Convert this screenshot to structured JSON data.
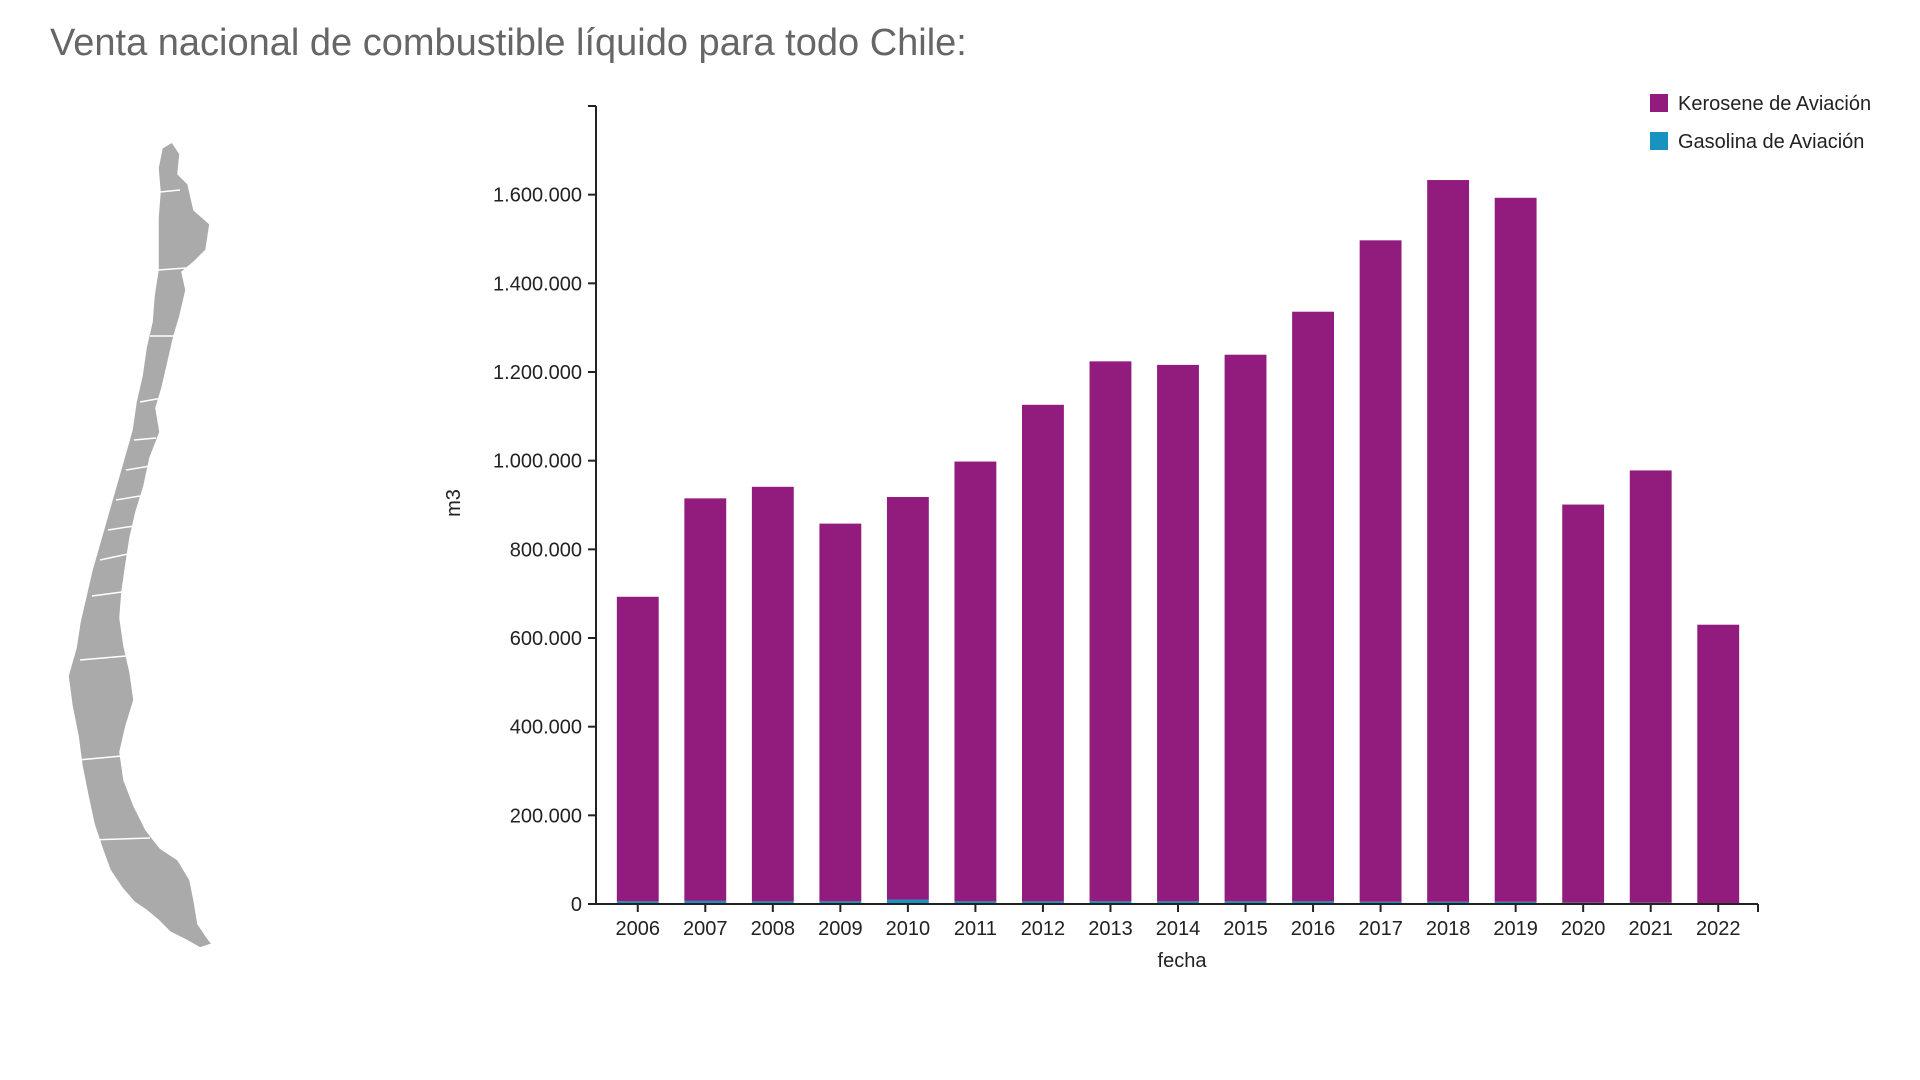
{
  "page": {
    "title": "Venta nacional de combustible líquido para todo Chile:"
  },
  "colors": {
    "kerosene": "#921b7e",
    "gasolina": "#1a92c0",
    "axis": "#222222",
    "map": "#aaaaaa"
  },
  "map": {
    "name": "chile-regions-map"
  },
  "chart_data": {
    "type": "bar",
    "stacked": true,
    "title": "Venta nacional de combustible líquido para todo Chile:",
    "xlabel": "fecha",
    "ylabel": "m3",
    "ylim": [
      0,
      1800000
    ],
    "yticks": [
      0,
      200000,
      400000,
      600000,
      800000,
      1000000,
      1200000,
      1400000,
      1600000
    ],
    "ytick_labels": [
      "0",
      "200.000",
      "400.000",
      "600.000",
      "800.000",
      "1.000.000",
      "1.200.000",
      "1.400.000",
      "1.600.000"
    ],
    "categories": [
      "2006",
      "2007",
      "2008",
      "2009",
      "2010",
      "2011",
      "2012",
      "2013",
      "2014",
      "2015",
      "2016",
      "2017",
      "2018",
      "2019",
      "2020",
      "2021",
      "2022"
    ],
    "series": [
      {
        "name": "Gasolina de Aviación",
        "color": "#1a92c0",
        "values": [
          6000,
          7000,
          6000,
          6000,
          10000,
          6000,
          6000,
          6000,
          6000,
          6000,
          6000,
          5000,
          5000,
          5000,
          3000,
          3000,
          2000
        ]
      },
      {
        "name": "Kerosene de Aviación",
        "color": "#921b7e",
        "values": [
          687000,
          908000,
          935000,
          852000,
          908000,
          992000,
          1120000,
          1218000,
          1210000,
          1233000,
          1330000,
          1492000,
          1628000,
          1588000,
          898000,
          975000,
          628000
        ]
      }
    ],
    "legend": {
      "position": "top-right",
      "entries": [
        {
          "label": "Kerosene de Aviación",
          "color": "#921b7e"
        },
        {
          "label": "Gasolina de Aviación",
          "color": "#1a92c0"
        }
      ]
    }
  }
}
